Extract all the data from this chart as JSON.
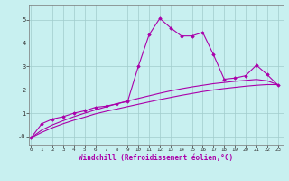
{
  "title": "",
  "xlabel": "Windchill (Refroidissement éolien,°C)",
  "background_color": "#c8f0f0",
  "grid_color": "#a0cccc",
  "line_color": "#aa00aa",
  "x_ticks": [
    0,
    1,
    2,
    3,
    4,
    5,
    6,
    7,
    8,
    9,
    10,
    11,
    12,
    13,
    14,
    15,
    16,
    17,
    18,
    19,
    20,
    21,
    22,
    23
  ],
  "y_ticks": [
    0,
    1,
    2,
    3,
    4,
    5
  ],
  "y_tick_labels": [
    "-0",
    "1",
    "2",
    "3",
    "4",
    "5"
  ],
  "xlim": [
    -0.2,
    23.5
  ],
  "ylim": [
    -0.35,
    5.6
  ],
  "line1_x": [
    0,
    1,
    2,
    3,
    4,
    5,
    6,
    7,
    8,
    9,
    10,
    11,
    12,
    13,
    14,
    15,
    16,
    17,
    18,
    19,
    20,
    21,
    22,
    23
  ],
  "line1_y": [
    -0.05,
    0.55,
    0.75,
    0.85,
    1.0,
    1.1,
    1.25,
    1.3,
    1.4,
    1.5,
    3.0,
    4.35,
    5.05,
    4.65,
    4.3,
    4.3,
    4.45,
    3.5,
    2.45,
    2.5,
    2.6,
    3.05,
    2.65,
    2.2
  ],
  "line2_x": [
    0,
    1,
    2,
    3,
    4,
    5,
    6,
    7,
    8,
    9,
    10,
    11,
    12,
    13,
    14,
    15,
    16,
    17,
    18,
    19,
    20,
    21,
    22,
    23
  ],
  "line2_y": [
    -0.05,
    0.18,
    0.38,
    0.55,
    0.7,
    0.83,
    0.97,
    1.08,
    1.18,
    1.28,
    1.38,
    1.48,
    1.58,
    1.67,
    1.76,
    1.84,
    1.92,
    1.99,
    2.05,
    2.1,
    2.15,
    2.19,
    2.22,
    2.22
  ],
  "line3_x": [
    0,
    1,
    2,
    3,
    4,
    5,
    6,
    7,
    8,
    9,
    10,
    11,
    12,
    13,
    14,
    15,
    16,
    17,
    18,
    19,
    20,
    21,
    22,
    23
  ],
  "line3_y": [
    -0.05,
    0.28,
    0.5,
    0.68,
    0.85,
    1.0,
    1.14,
    1.27,
    1.4,
    1.52,
    1.63,
    1.74,
    1.85,
    1.95,
    2.04,
    2.12,
    2.19,
    2.26,
    2.31,
    2.36,
    2.4,
    2.44,
    2.38,
    2.22
  ]
}
